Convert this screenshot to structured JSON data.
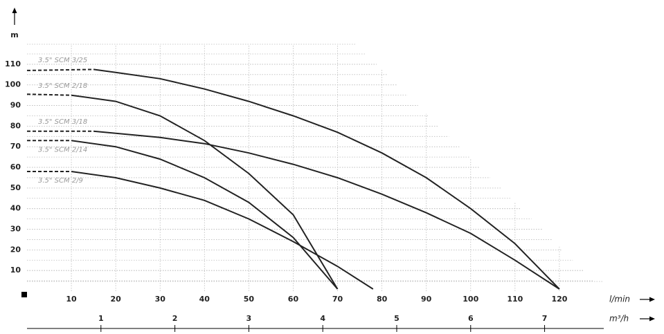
{
  "chart_data": {
    "type": "line",
    "y_label": "m",
    "x_label": "l/min",
    "x2_label": "m³/h",
    "xlim": [
      0,
      130
    ],
    "xticks": [
      10,
      20,
      30,
      40,
      50,
      60,
      70,
      80,
      90,
      100,
      110,
      120
    ],
    "ylim": [
      0,
      115
    ],
    "yticks": [
      10,
      20,
      30,
      40,
      50,
      60,
      70,
      80,
      90,
      100,
      110
    ],
    "x2lim": [
      0,
      7.8
    ],
    "x2ticks": [
      1,
      2,
      3,
      4,
      5,
      6,
      7
    ],
    "grid": true,
    "series": [
      {
        "name": "3.5\" SCM 3/25",
        "color": "#222222",
        "x": [
          0,
          15,
          20,
          30,
          40,
          50,
          60,
          70,
          80,
          90,
          100,
          110,
          120
        ],
        "values": [
          107,
          107.5,
          106,
          103,
          98,
          92,
          85,
          77,
          67,
          55,
          40,
          23,
          1
        ]
      },
      {
        "name": "3.5\" SCM 2/18",
        "color": "#222222",
        "x": [
          0,
          10,
          20,
          30,
          40,
          50,
          60,
          70
        ],
        "values": [
          95.5,
          95,
          92,
          85,
          73,
          57,
          37,
          1
        ]
      },
      {
        "name": "3.5\" SCM 3/18",
        "color": "#222222",
        "x": [
          0,
          15,
          20,
          30,
          40,
          50,
          60,
          70,
          80,
          90,
          100,
          110,
          120
        ],
        "values": [
          77.5,
          77.5,
          76.5,
          74.5,
          71.5,
          67,
          61.5,
          55,
          47,
          38,
          28,
          15,
          1
        ]
      },
      {
        "name": "3.5\" SCM 2/14",
        "color": "#222222",
        "x": [
          0,
          10,
          20,
          30,
          40,
          50,
          60,
          70
        ],
        "values": [
          73,
          73,
          70,
          64,
          55,
          43,
          26,
          1
        ]
      },
      {
        "name": "3.5\" SCM 2/9",
        "color": "#222222",
        "x": [
          0,
          10,
          20,
          30,
          40,
          50,
          60,
          70,
          78
        ],
        "values": [
          58,
          58,
          55,
          50,
          44,
          35,
          24,
          12,
          1
        ]
      }
    ]
  }
}
